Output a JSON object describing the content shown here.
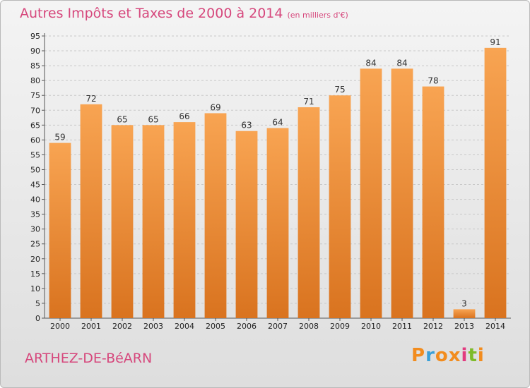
{
  "title": "Autres Impôts et Taxes de 2000 à 2014",
  "unit": "(en milliers d'€)",
  "place": "ARTHEZ-DE-BéARN",
  "logo": {
    "letters": [
      "P",
      "r",
      "o",
      "x",
      "i",
      "t",
      "i"
    ],
    "colors": [
      "#f28c1e",
      "#3aa0d8",
      "#f28c1e",
      "#f28c1e",
      "#e23b7f",
      "#7dbb2a",
      "#f28c1e"
    ]
  },
  "colors": {
    "bar_light": "#f8a452",
    "bar_dark": "#d9731f",
    "title": "#d6477c",
    "grid": "#c8c8c8"
  },
  "chart_data": {
    "type": "bar",
    "categories": [
      "2000",
      "2001",
      "2002",
      "2003",
      "2004",
      "2005",
      "2006",
      "2007",
      "2008",
      "2009",
      "2010",
      "2011",
      "2012",
      "2013",
      "2014"
    ],
    "values": [
      59,
      72,
      65,
      65,
      66,
      69,
      63,
      64,
      71,
      75,
      84,
      84,
      78,
      3,
      91
    ],
    "ylim": [
      0,
      95
    ],
    "yticks": [
      0,
      5,
      10,
      15,
      20,
      25,
      30,
      35,
      40,
      45,
      50,
      55,
      60,
      65,
      70,
      75,
      80,
      85,
      90,
      95
    ],
    "grid": true,
    "xlabel": "",
    "ylabel": ""
  }
}
